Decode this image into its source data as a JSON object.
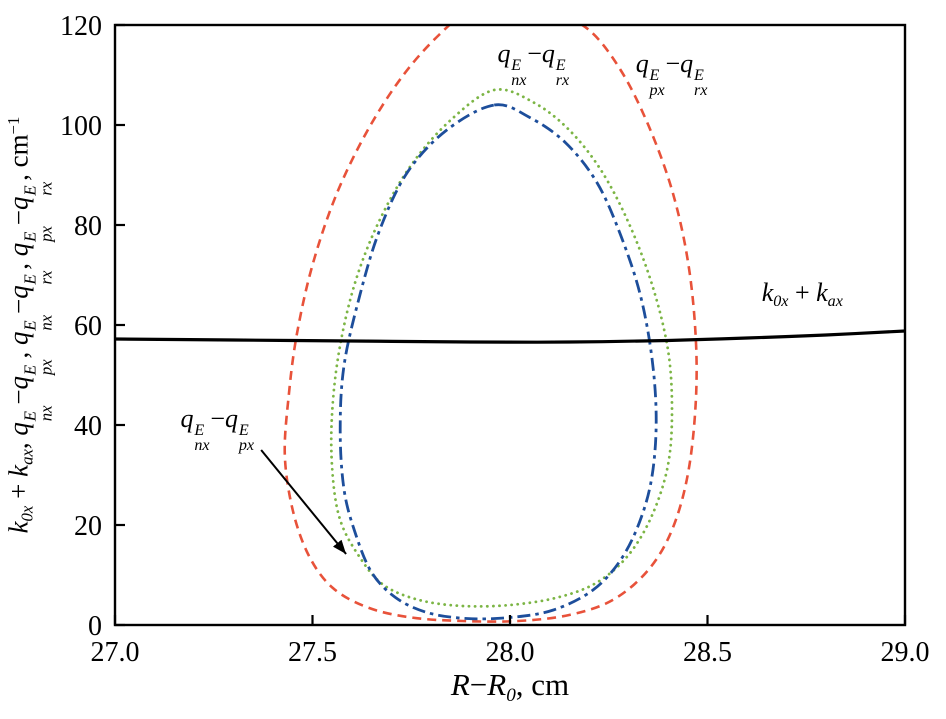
{
  "chart_data": {
    "type": "line",
    "title": "",
    "xlabel_parts": [
      {
        "b": "R"
      },
      {
        "t": "−"
      },
      {
        "b": "R",
        "sub": "0"
      },
      {
        "t": ", cm"
      }
    ],
    "ylabel_parts": [
      {
        "b": "k",
        "sub": "0x"
      },
      {
        "t": " + "
      },
      {
        "b": "k",
        "sub": "ax"
      },
      {
        "t": ", "
      },
      {
        "b": "q",
        "sub": "nx",
        "sup": "E"
      },
      {
        "t": "−"
      },
      {
        "b": "q",
        "sub": "px",
        "sup": "E"
      },
      {
        "t": ", "
      },
      {
        "b": "q",
        "sub": "nx",
        "sup": "E"
      },
      {
        "t": "−"
      },
      {
        "b": "q",
        "sub": "rx",
        "sup": "E"
      },
      {
        "t": ", "
      },
      {
        "b": "q",
        "sub": "px",
        "sup": "E"
      },
      {
        "t": "−"
      },
      {
        "b": "q",
        "sub": "rx",
        "sup": "E"
      },
      {
        "t": ", cm"
      },
      {
        "sup": "−1"
      }
    ],
    "xlim": [
      27.0,
      29.0
    ],
    "ylim": [
      0,
      120
    ],
    "xticks": [
      27.0,
      27.5,
      28.0,
      28.5,
      29.0
    ],
    "xtick_labels": [
      "27.0",
      "27.5",
      "28.0",
      "28.5",
      "29.0"
    ],
    "yticks": [
      0,
      20,
      40,
      60,
      80,
      100,
      120
    ],
    "ytick_labels": [
      "0",
      "20",
      "40",
      "60",
      "80",
      "100",
      "120"
    ],
    "grid": false,
    "legend": "inline-annotations",
    "series": [
      {
        "id": "qpx-minus-qrx",
        "name": "q_px^E − q_rx^E",
        "closed": true,
        "color": "#e8523a",
        "width": 2.6,
        "dash": "9 6",
        "cap": "butt",
        "points": [
          [
            28.0,
            124.5
          ],
          [
            28.1,
            123
          ],
          [
            28.2,
            119
          ],
          [
            28.28,
            111
          ],
          [
            28.35,
            100
          ],
          [
            28.41,
            87
          ],
          [
            28.45,
            73
          ],
          [
            28.47,
            58
          ],
          [
            28.47,
            44
          ],
          [
            28.45,
            30
          ],
          [
            28.41,
            19
          ],
          [
            28.35,
            11
          ],
          [
            28.26,
            5
          ],
          [
            28.15,
            2
          ],
          [
            28.02,
            0.8
          ],
          [
            27.88,
            0.8
          ],
          [
            27.75,
            1.5
          ],
          [
            27.64,
            3.5
          ],
          [
            27.55,
            7.5
          ],
          [
            27.49,
            14
          ],
          [
            27.45,
            23
          ],
          [
            27.43,
            34
          ],
          [
            27.44,
            46
          ],
          [
            27.46,
            58
          ],
          [
            27.5,
            72
          ],
          [
            27.56,
            86
          ],
          [
            27.64,
            99
          ],
          [
            27.73,
            110
          ],
          [
            27.82,
            118
          ],
          [
            27.9,
            123
          ]
        ]
      },
      {
        "id": "qnx-minus-qrx",
        "name": "q_nx^E − q_rx^E",
        "closed": true,
        "color": "#7cb545",
        "width": 2.8,
        "dash": "0.1 6",
        "cap": "round",
        "points": [
          [
            27.96,
            107
          ],
          [
            28.06,
            104.5
          ],
          [
            28.15,
            99
          ],
          [
            28.23,
            91
          ],
          [
            28.3,
            80.5
          ],
          [
            28.36,
            68
          ],
          [
            28.4,
            55
          ],
          [
            28.41,
            43
          ],
          [
            28.4,
            32
          ],
          [
            28.36,
            22
          ],
          [
            28.3,
            14
          ],
          [
            28.22,
            8.5
          ],
          [
            28.12,
            5.5
          ],
          [
            28.0,
            4
          ],
          [
            27.88,
            3.8
          ],
          [
            27.77,
            5
          ],
          [
            27.68,
            8
          ],
          [
            27.62,
            13.5
          ],
          [
            27.57,
            21
          ],
          [
            27.55,
            31
          ],
          [
            27.55,
            43
          ],
          [
            27.57,
            56
          ],
          [
            27.61,
            69
          ],
          [
            27.67,
            81
          ],
          [
            27.75,
            92
          ],
          [
            27.85,
            101
          ]
        ]
      },
      {
        "id": "qnx-minus-qpx",
        "name": "q_nx^E − q_px^E",
        "closed": true,
        "color": "#1d4e9b",
        "width": 2.8,
        "dash": "13 5 3.5 5",
        "cap": "butt",
        "points": [
          [
            27.96,
            104
          ],
          [
            28.05,
            101.5
          ],
          [
            28.14,
            96.5
          ],
          [
            28.22,
            88.5
          ],
          [
            28.28,
            78
          ],
          [
            28.33,
            66
          ],
          [
            28.36,
            53
          ],
          [
            28.37,
            41
          ],
          [
            28.36,
            30
          ],
          [
            28.33,
            21
          ],
          [
            28.28,
            13
          ],
          [
            28.21,
            7
          ],
          [
            28.11,
            3
          ],
          [
            28.0,
            1.5
          ],
          [
            27.89,
            1.3
          ],
          [
            27.79,
            2.5
          ],
          [
            27.71,
            5.5
          ],
          [
            27.65,
            10.5
          ],
          [
            27.61,
            18
          ],
          [
            27.58,
            27
          ],
          [
            27.57,
            39
          ],
          [
            27.58,
            52
          ],
          [
            27.62,
            66
          ],
          [
            27.67,
            79
          ],
          [
            27.74,
            90.5
          ],
          [
            27.84,
            99
          ]
        ]
      },
      {
        "id": "k0x-plus-kax",
        "name": "k_0x + k_ax",
        "closed": false,
        "color": "#000000",
        "width": 3.2,
        "dash": "",
        "cap": "butt",
        "points": [
          [
            27.0,
            57.2
          ],
          [
            27.3,
            57.0
          ],
          [
            27.6,
            56.8
          ],
          [
            27.9,
            56.6
          ],
          [
            28.15,
            56.6
          ],
          [
            28.4,
            56.9
          ],
          [
            28.6,
            57.4
          ],
          [
            28.8,
            58.0
          ],
          [
            29.0,
            58.8
          ]
        ]
      }
    ],
    "annotations": {
      "labels": [
        {
          "id": "label-qnx-qrx",
          "x": 28.06,
          "y": 112,
          "parts": [
            {
              "b": "q",
              "sub": "nx",
              "sup": "E"
            },
            {
              "t": "−"
            },
            {
              "b": "q",
              "sub": "rx",
              "sup": "E"
            }
          ]
        },
        {
          "id": "label-qpx-qrx",
          "x": 28.41,
          "y": 110,
          "parts": [
            {
              "b": "q",
              "sub": "px",
              "sup": "E"
            },
            {
              "t": "−"
            },
            {
              "b": "q",
              "sub": "rx",
              "sup": "E"
            }
          ]
        },
        {
          "id": "label-k0x-kax",
          "x": 28.74,
          "y": 66,
          "parts": [
            {
              "b": "k",
              "sub": "0x"
            },
            {
              "t": " + "
            },
            {
              "b": "k",
              "sub": "ax"
            }
          ]
        },
        {
          "id": "label-qnx-qpx",
          "x": 27.26,
          "y": 39,
          "parts": [
            {
              "b": "q",
              "sub": "nx",
              "sup": "E"
            },
            {
              "t": "−"
            },
            {
              "b": "q",
              "sub": "px",
              "sup": "E"
            }
          ]
        }
      ],
      "arrow": {
        "from": [
          27.37,
          35.0
        ],
        "to": [
          27.585,
          14.2
        ]
      }
    }
  }
}
